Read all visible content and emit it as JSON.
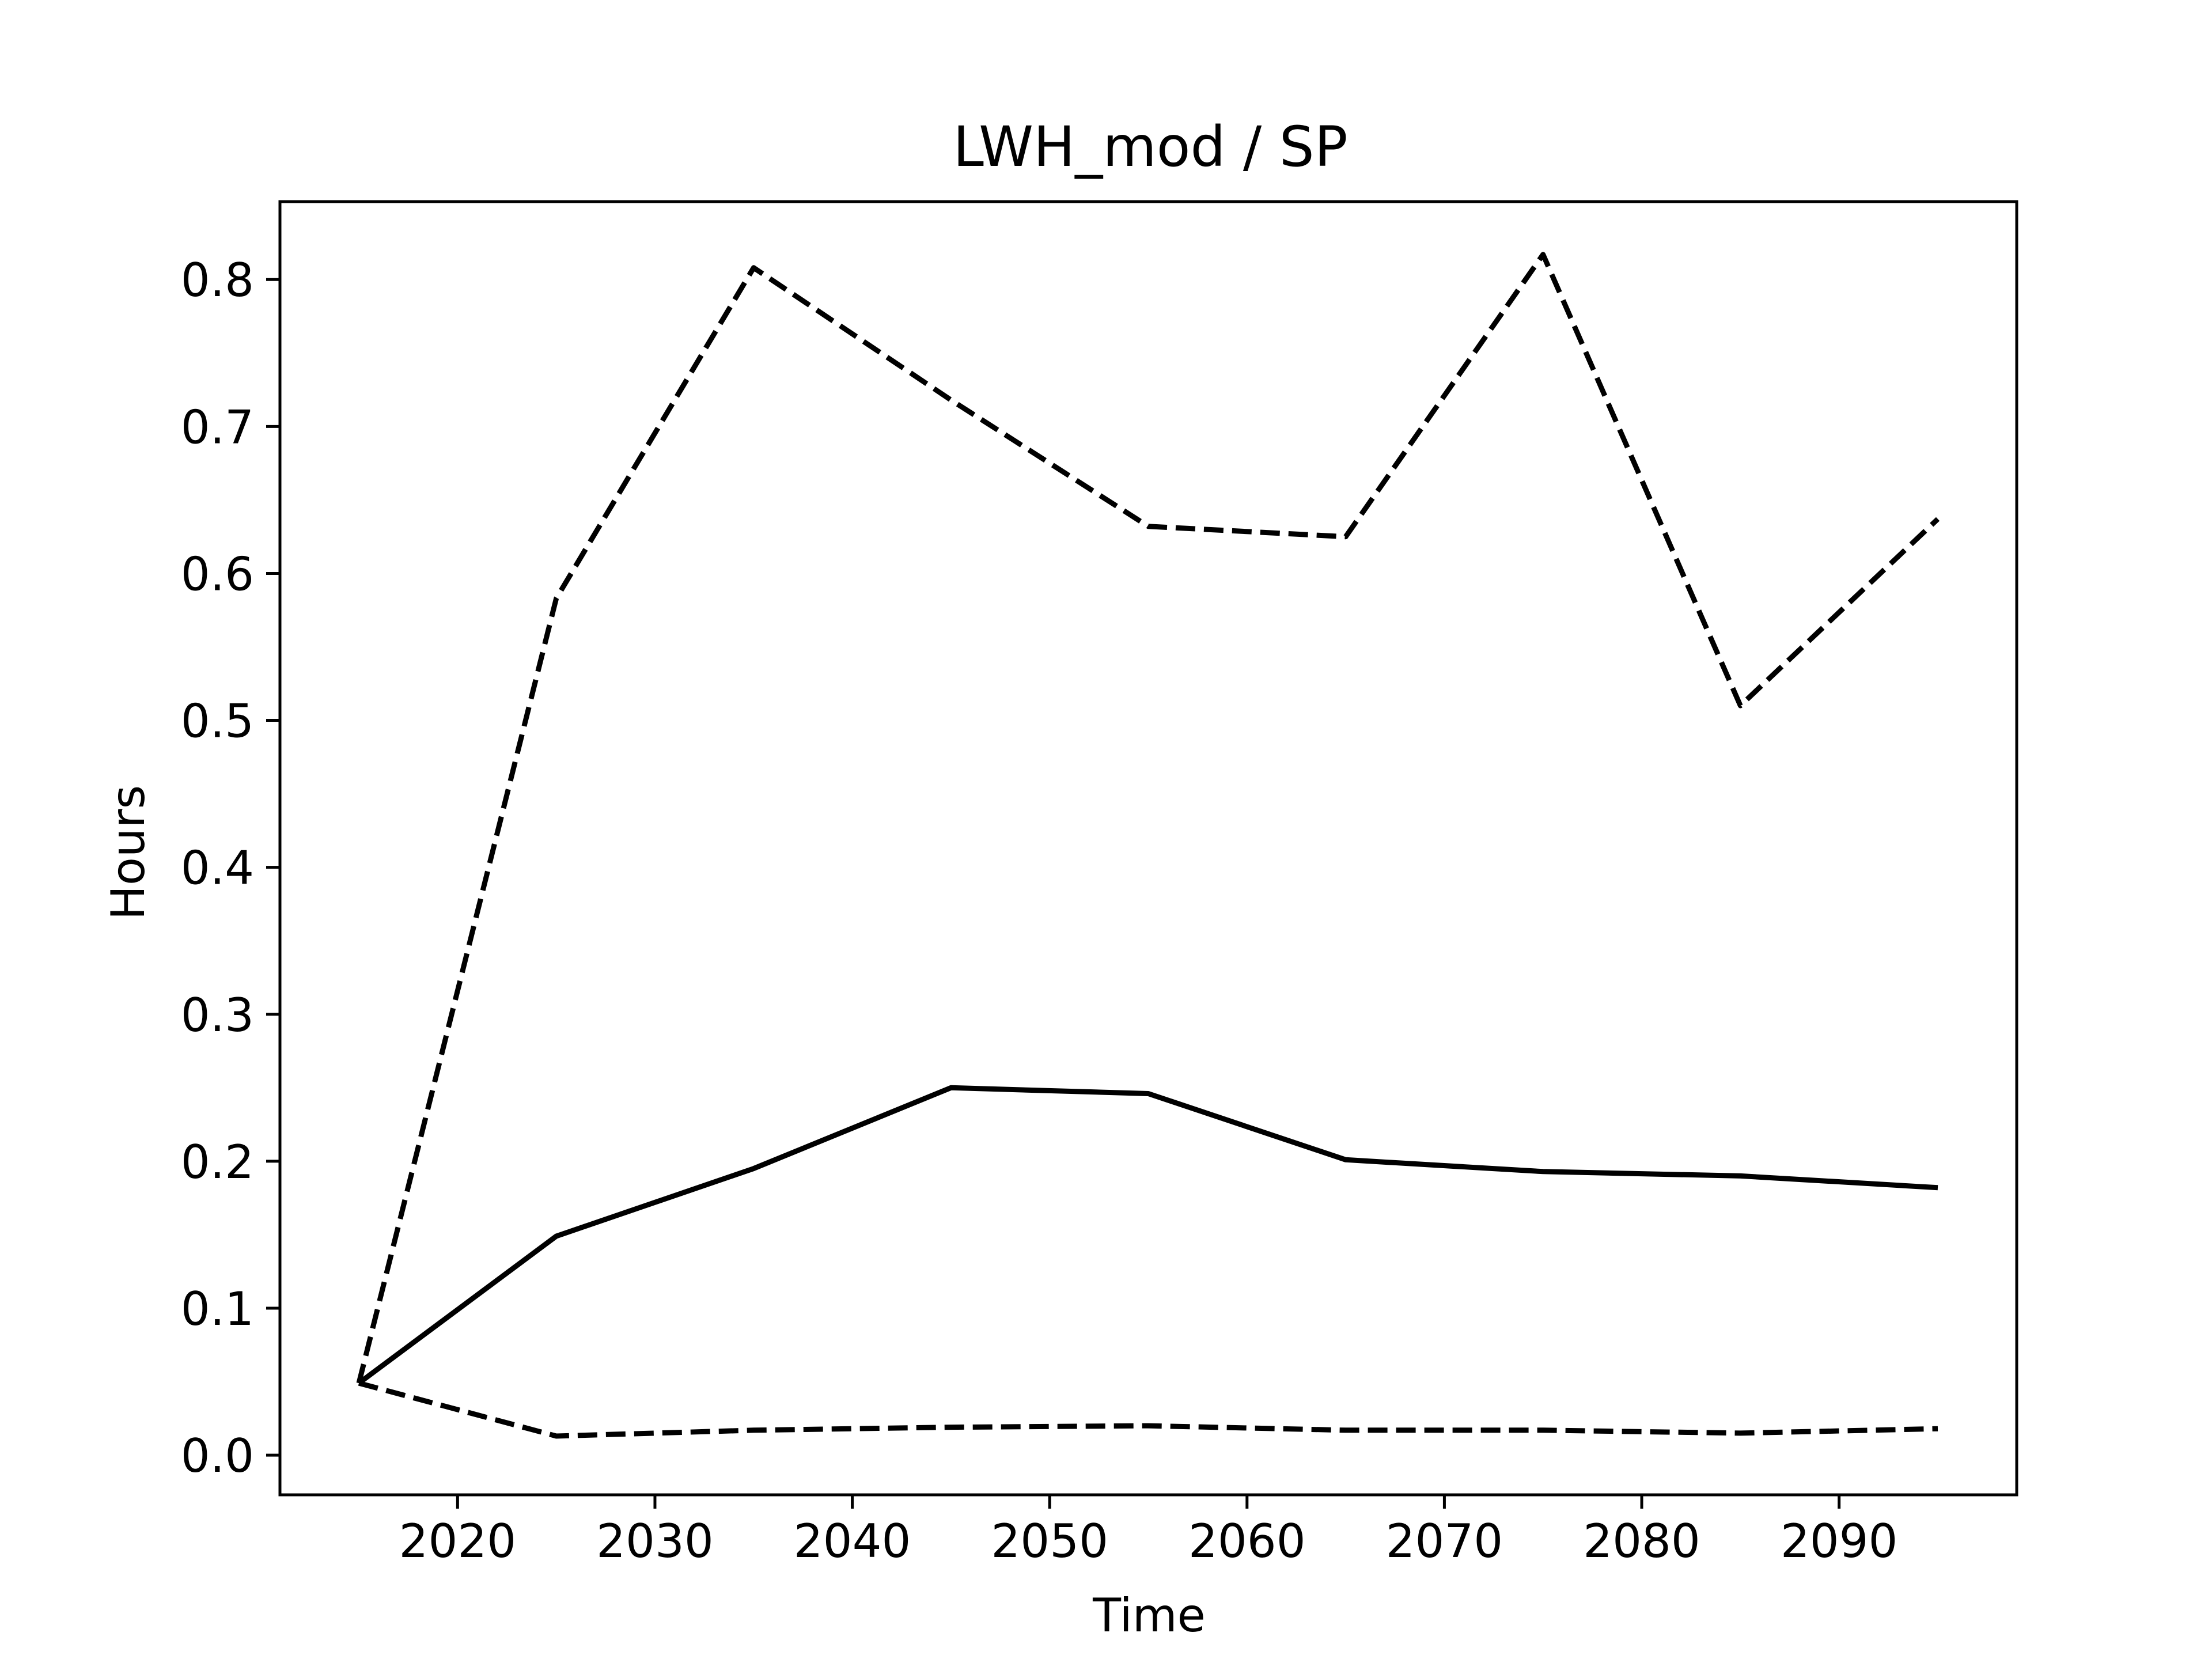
{
  "chart_data": {
    "type": "line",
    "title": "LWH_mod / SP",
    "xlabel": "Time",
    "ylabel": "Hours",
    "xlim": [
      2011,
      2099
    ],
    "ylim": [
      -0.027,
      0.853
    ],
    "xticks": [
      2020,
      2030,
      2040,
      2050,
      2060,
      2070,
      2080,
      2090
    ],
    "yticks": [
      0.0,
      0.1,
      0.2,
      0.3,
      0.4,
      0.5,
      0.6,
      0.7,
      0.8
    ],
    "grid": false,
    "line_color": "#000000",
    "series": [
      {
        "style": "solid",
        "x": [
          2015,
          2025,
          2035,
          2045,
          2055,
          2065,
          2075,
          2085,
          2095
        ],
        "y": [
          0.049,
          0.149,
          0.195,
          0.25,
          0.246,
          0.201,
          0.193,
          0.19,
          0.182
        ]
      },
      {
        "style": "dashed",
        "x": [
          2015,
          2025,
          2035,
          2045,
          2055,
          2065,
          2075,
          2085,
          2095
        ],
        "y": [
          0.049,
          0.583,
          0.808,
          0.718,
          0.632,
          0.625,
          0.817,
          0.51,
          0.637
        ]
      },
      {
        "style": "dashed",
        "x": [
          2015,
          2025,
          2035,
          2045,
          2055,
          2065,
          2075,
          2085,
          2095
        ],
        "y": [
          0.049,
          0.013,
          0.017,
          0.019,
          0.02,
          0.017,
          0.017,
          0.015,
          0.018
        ]
      }
    ]
  }
}
